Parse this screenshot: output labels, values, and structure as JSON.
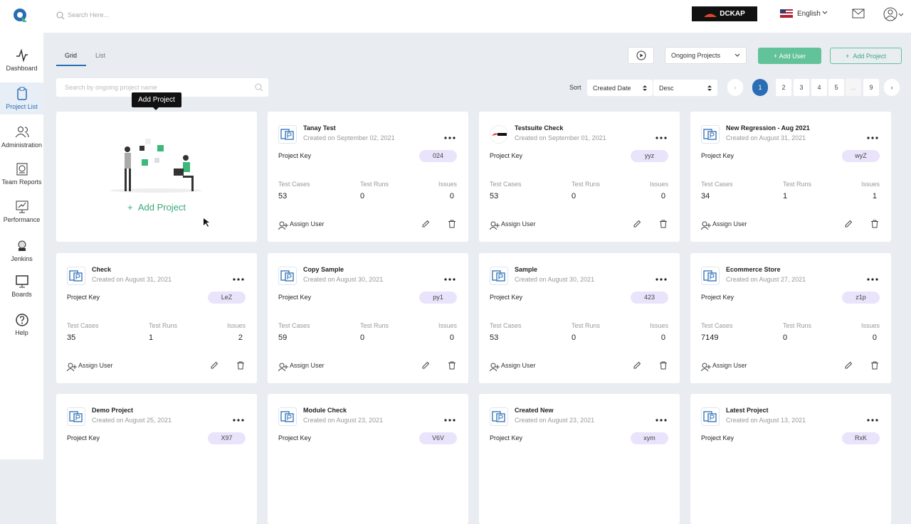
{
  "header": {
    "search_placeholder": "Search Here...",
    "brand": "DCKAP",
    "language": "English"
  },
  "sidebar": [
    "Dashboard",
    "Project List",
    "Administration",
    "Team Reports",
    "Performance",
    "Jenkins",
    "Boards",
    "Help"
  ],
  "tabs": [
    "Grid",
    "List"
  ],
  "toolbar": {
    "filter": "Ongoing Projects",
    "add_user": "Add User",
    "add_project": "Add Project"
  },
  "search_placeholder": "Search by ongoing project name",
  "sort": {
    "label": "Sort",
    "field": "Created Date",
    "order": "Desc"
  },
  "pagination": [
    "1",
    "2",
    "3",
    "4",
    "5",
    "...",
    "9"
  ],
  "tooltip": "Add Project",
  "add_card": "Add Project",
  "labels": {
    "project_key": "Project Key",
    "test_cases": "Test Cases",
    "test_runs": "Test Runs",
    "issues": "Issues",
    "assign_user": "Assign User"
  },
  "projects": [
    {
      "name": "Tanay Test",
      "created": "Created on September 02, 2021",
      "key": "024",
      "test_cases": 53,
      "test_runs": 0,
      "issues": 0
    },
    {
      "name": "Testsuite Check",
      "created": "Created on September 01, 2021",
      "key": "yyz",
      "test_cases": 53,
      "test_runs": 0,
      "issues": 0
    },
    {
      "name": "New Regression - Aug 2021",
      "created": "Created on August 31, 2021",
      "key": "wyZ",
      "test_cases": 34,
      "test_runs": 1,
      "issues": 1
    },
    {
      "name": "Check",
      "created": "Created on August 31, 2021",
      "key": "LeZ",
      "test_cases": 35,
      "test_runs": 1,
      "issues": 2
    },
    {
      "name": "Copy Sample",
      "created": "Created on August 30, 2021",
      "key": "py1",
      "test_cases": 59,
      "test_runs": 0,
      "issues": 0
    },
    {
      "name": "Sample",
      "created": "Created on August 30, 2021",
      "key": "423",
      "test_cases": 53,
      "test_runs": 0,
      "issues": 0
    },
    {
      "name": "Ecommerce Store",
      "created": "Created on August 27, 2021",
      "key": "z1p",
      "test_cases": 7149,
      "test_runs": 0,
      "issues": 0
    },
    {
      "name": "Demo Project",
      "created": "Created on August 25, 2021",
      "key": "X97"
    },
    {
      "name": "Module Check",
      "created": "Created on August 23, 2021",
      "key": "V6V"
    },
    {
      "name": "Created New",
      "created": "Created on August 23, 2021",
      "key": "xym"
    },
    {
      "name": "Latest Project",
      "created": "Created on August 13, 2021",
      "key": "RxK"
    }
  ]
}
